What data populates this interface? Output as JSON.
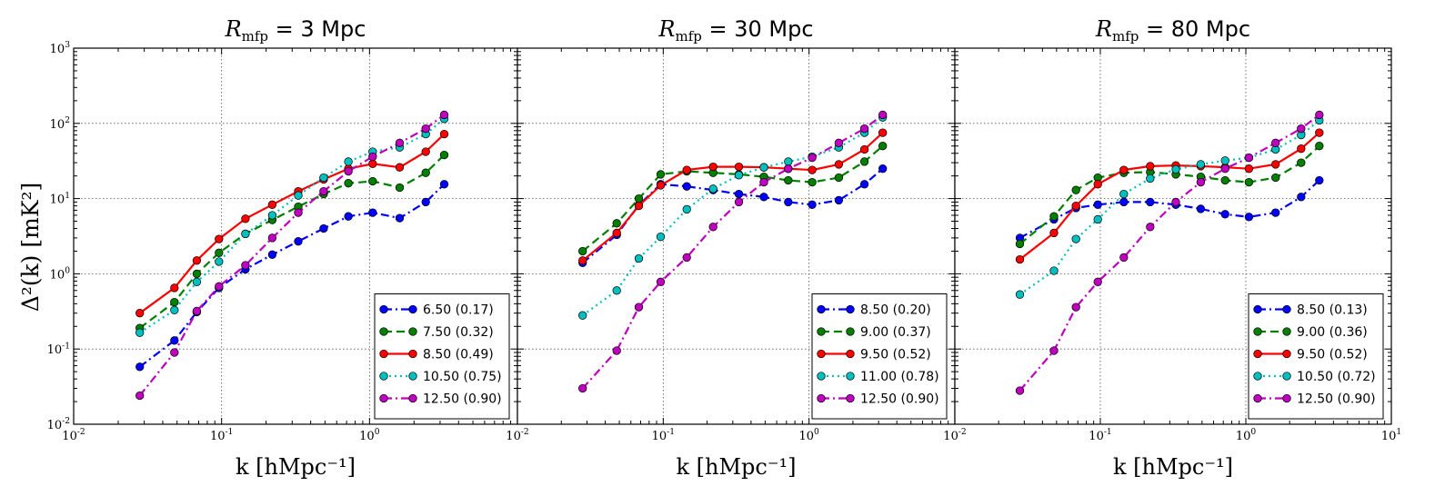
{
  "figure": {
    "ylabel": "Δ²(k) [mK²]",
    "xlabel": "k [hMpc⁻¹]"
  },
  "chart_data": [
    {
      "type": "line",
      "title": "R_mfp = 3 Mpc",
      "title_main": "R",
      "title_sub": "mfp",
      "title_rest": " = 3 Mpc",
      "xlabel": "k [hMpc⁻¹]",
      "ylabel": "Δ²(k) [mK²]",
      "xscale": "log",
      "yscale": "log",
      "xlim": [
        0.01,
        10
      ],
      "ylim": [
        0.01,
        1000
      ],
      "grid": true,
      "legend_position": "lower-right",
      "x": [
        0.028,
        0.048,
        0.068,
        0.096,
        0.145,
        0.22,
        0.33,
        0.49,
        0.72,
        1.05,
        1.6,
        2.4,
        3.2
      ],
      "series": [
        {
          "name": "6.50 (0.17)",
          "color": "#0000ff",
          "linestyle": "dashdot",
          "values": [
            0.058,
            0.13,
            0.31,
            0.65,
            1.15,
            1.8,
            2.7,
            4.0,
            5.8,
            6.5,
            5.5,
            9.0,
            15.5
          ]
        },
        {
          "name": "7.50 (0.32)",
          "color": "#007f00",
          "linestyle": "dashed",
          "values": [
            0.19,
            0.42,
            1.0,
            1.9,
            3.4,
            5.2,
            7.8,
            11.5,
            16.0,
            17.0,
            14.0,
            22.0,
            38.0
          ]
        },
        {
          "name": "8.50 (0.49)",
          "color": "#ff0000",
          "linestyle": "solid",
          "values": [
            0.3,
            0.65,
            1.5,
            2.9,
            5.4,
            8.3,
            12.5,
            18.0,
            25.0,
            29.0,
            26.0,
            42.0,
            72.0
          ]
        },
        {
          "name": "10.50 (0.75)",
          "color": "#00bfbf",
          "linestyle": "dotted",
          "values": [
            0.165,
            0.33,
            0.78,
            1.45,
            3.4,
            6.0,
            11.0,
            19.0,
            31.0,
            42.0,
            48.0,
            72.0,
            115.0
          ]
        },
        {
          "name": "12.50 (0.90)",
          "color": "#bf00bf",
          "linestyle": "dashdot",
          "values": [
            0.024,
            0.09,
            0.32,
            0.68,
            1.3,
            3.0,
            6.5,
            12.5,
            23.0,
            36.0,
            55.0,
            85.0,
            130.0
          ]
        }
      ]
    },
    {
      "type": "line",
      "title": "R_mfp = 30 Mpc",
      "title_main": "R",
      "title_sub": "mfp",
      "title_rest": " = 30 Mpc",
      "xlabel": "k [hMpc⁻¹]",
      "ylabel": "Δ²(k) [mK²]",
      "xscale": "log",
      "yscale": "log",
      "xlim": [
        0.01,
        10
      ],
      "ylim": [
        0.01,
        1000
      ],
      "grid": true,
      "legend_position": "lower-right",
      "x": [
        0.028,
        0.048,
        0.068,
        0.096,
        0.145,
        0.22,
        0.33,
        0.49,
        0.72,
        1.05,
        1.6,
        2.4,
        3.2
      ],
      "series": [
        {
          "name": "8.50 (0.20)",
          "color": "#0000ff",
          "linestyle": "dashdot",
          "values": [
            1.4,
            3.3,
            8.2,
            15.5,
            14.5,
            13.0,
            11.5,
            10.5,
            9.0,
            8.3,
            9.5,
            15.5,
            25.0
          ]
        },
        {
          "name": "9.00 (0.37)",
          "color": "#007f00",
          "linestyle": "dashed",
          "values": [
            2.0,
            4.7,
            10.0,
            21.0,
            23.0,
            22.0,
            21.0,
            19.5,
            17.5,
            16.5,
            19.0,
            31.0,
            50.0
          ]
        },
        {
          "name": "9.50 (0.52)",
          "color": "#ff0000",
          "linestyle": "solid",
          "values": [
            1.5,
            3.5,
            8.0,
            15.0,
            24.0,
            26.5,
            26.5,
            26.0,
            25.0,
            24.0,
            28.5,
            45.0,
            75.0
          ]
        },
        {
          "name": "11.00 (0.78)",
          "color": "#00bfbf",
          "linestyle": "dotted",
          "values": [
            0.28,
            0.6,
            1.6,
            3.1,
            7.2,
            13.5,
            20.5,
            26.0,
            31.0,
            36.0,
            48.0,
            75.0,
            120.0
          ]
        },
        {
          "name": "12.50 (0.90)",
          "color": "#bf00bf",
          "linestyle": "dashdot",
          "values": [
            0.03,
            0.095,
            0.36,
            0.78,
            1.65,
            4.2,
            9.0,
            16.5,
            25.0,
            35.0,
            55.0,
            85.0,
            130.0
          ]
        }
      ]
    },
    {
      "type": "line",
      "title": "R_mfp = 80 Mpc",
      "title_main": "R",
      "title_sub": "mfp",
      "title_rest": " = 80 Mpc",
      "xlabel": "k [hMpc⁻¹]",
      "ylabel": "Δ²(k) [mK²]",
      "xscale": "log",
      "yscale": "log",
      "xlim": [
        0.01,
        10
      ],
      "ylim": [
        0.01,
        1000
      ],
      "grid": true,
      "legend_position": "lower-right",
      "x": [
        0.028,
        0.048,
        0.068,
        0.096,
        0.145,
        0.22,
        0.33,
        0.49,
        0.72,
        1.05,
        1.6,
        2.4,
        3.2
      ],
      "series": [
        {
          "name": "8.50 (0.13)",
          "color": "#0000ff",
          "linestyle": "dashdot",
          "values": [
            3.0,
            5.3,
            7.5,
            8.3,
            9.0,
            9.0,
            8.3,
            7.3,
            6.2,
            5.7,
            6.5,
            10.5,
            17.5
          ]
        },
        {
          "name": "9.00 (0.36)",
          "color": "#007f00",
          "linestyle": "dashed",
          "values": [
            2.5,
            5.8,
            13.0,
            19.0,
            22.0,
            22.5,
            21.0,
            19.5,
            17.5,
            16.5,
            19.0,
            30.0,
            50.0
          ]
        },
        {
          "name": "9.50 (0.52)",
          "color": "#ff0000",
          "linestyle": "solid",
          "values": [
            1.55,
            3.5,
            8.0,
            15.5,
            24.0,
            27.0,
            27.5,
            27.0,
            26.0,
            25.0,
            28.5,
            46.0,
            75.0
          ]
        },
        {
          "name": "10.50 (0.72)",
          "color": "#00bfbf",
          "linestyle": "dotted",
          "values": [
            0.53,
            1.1,
            2.9,
            5.3,
            11.5,
            18.5,
            24.5,
            28.5,
            32.0,
            35.0,
            45.0,
            70.0,
            110.0
          ]
        },
        {
          "name": "12.50 (0.90)",
          "color": "#bf00bf",
          "linestyle": "dashdot",
          "values": [
            0.028,
            0.095,
            0.36,
            0.78,
            1.65,
            4.2,
            9.0,
            16.5,
            25.0,
            35.0,
            55.0,
            85.0,
            130.0
          ]
        }
      ]
    }
  ]
}
